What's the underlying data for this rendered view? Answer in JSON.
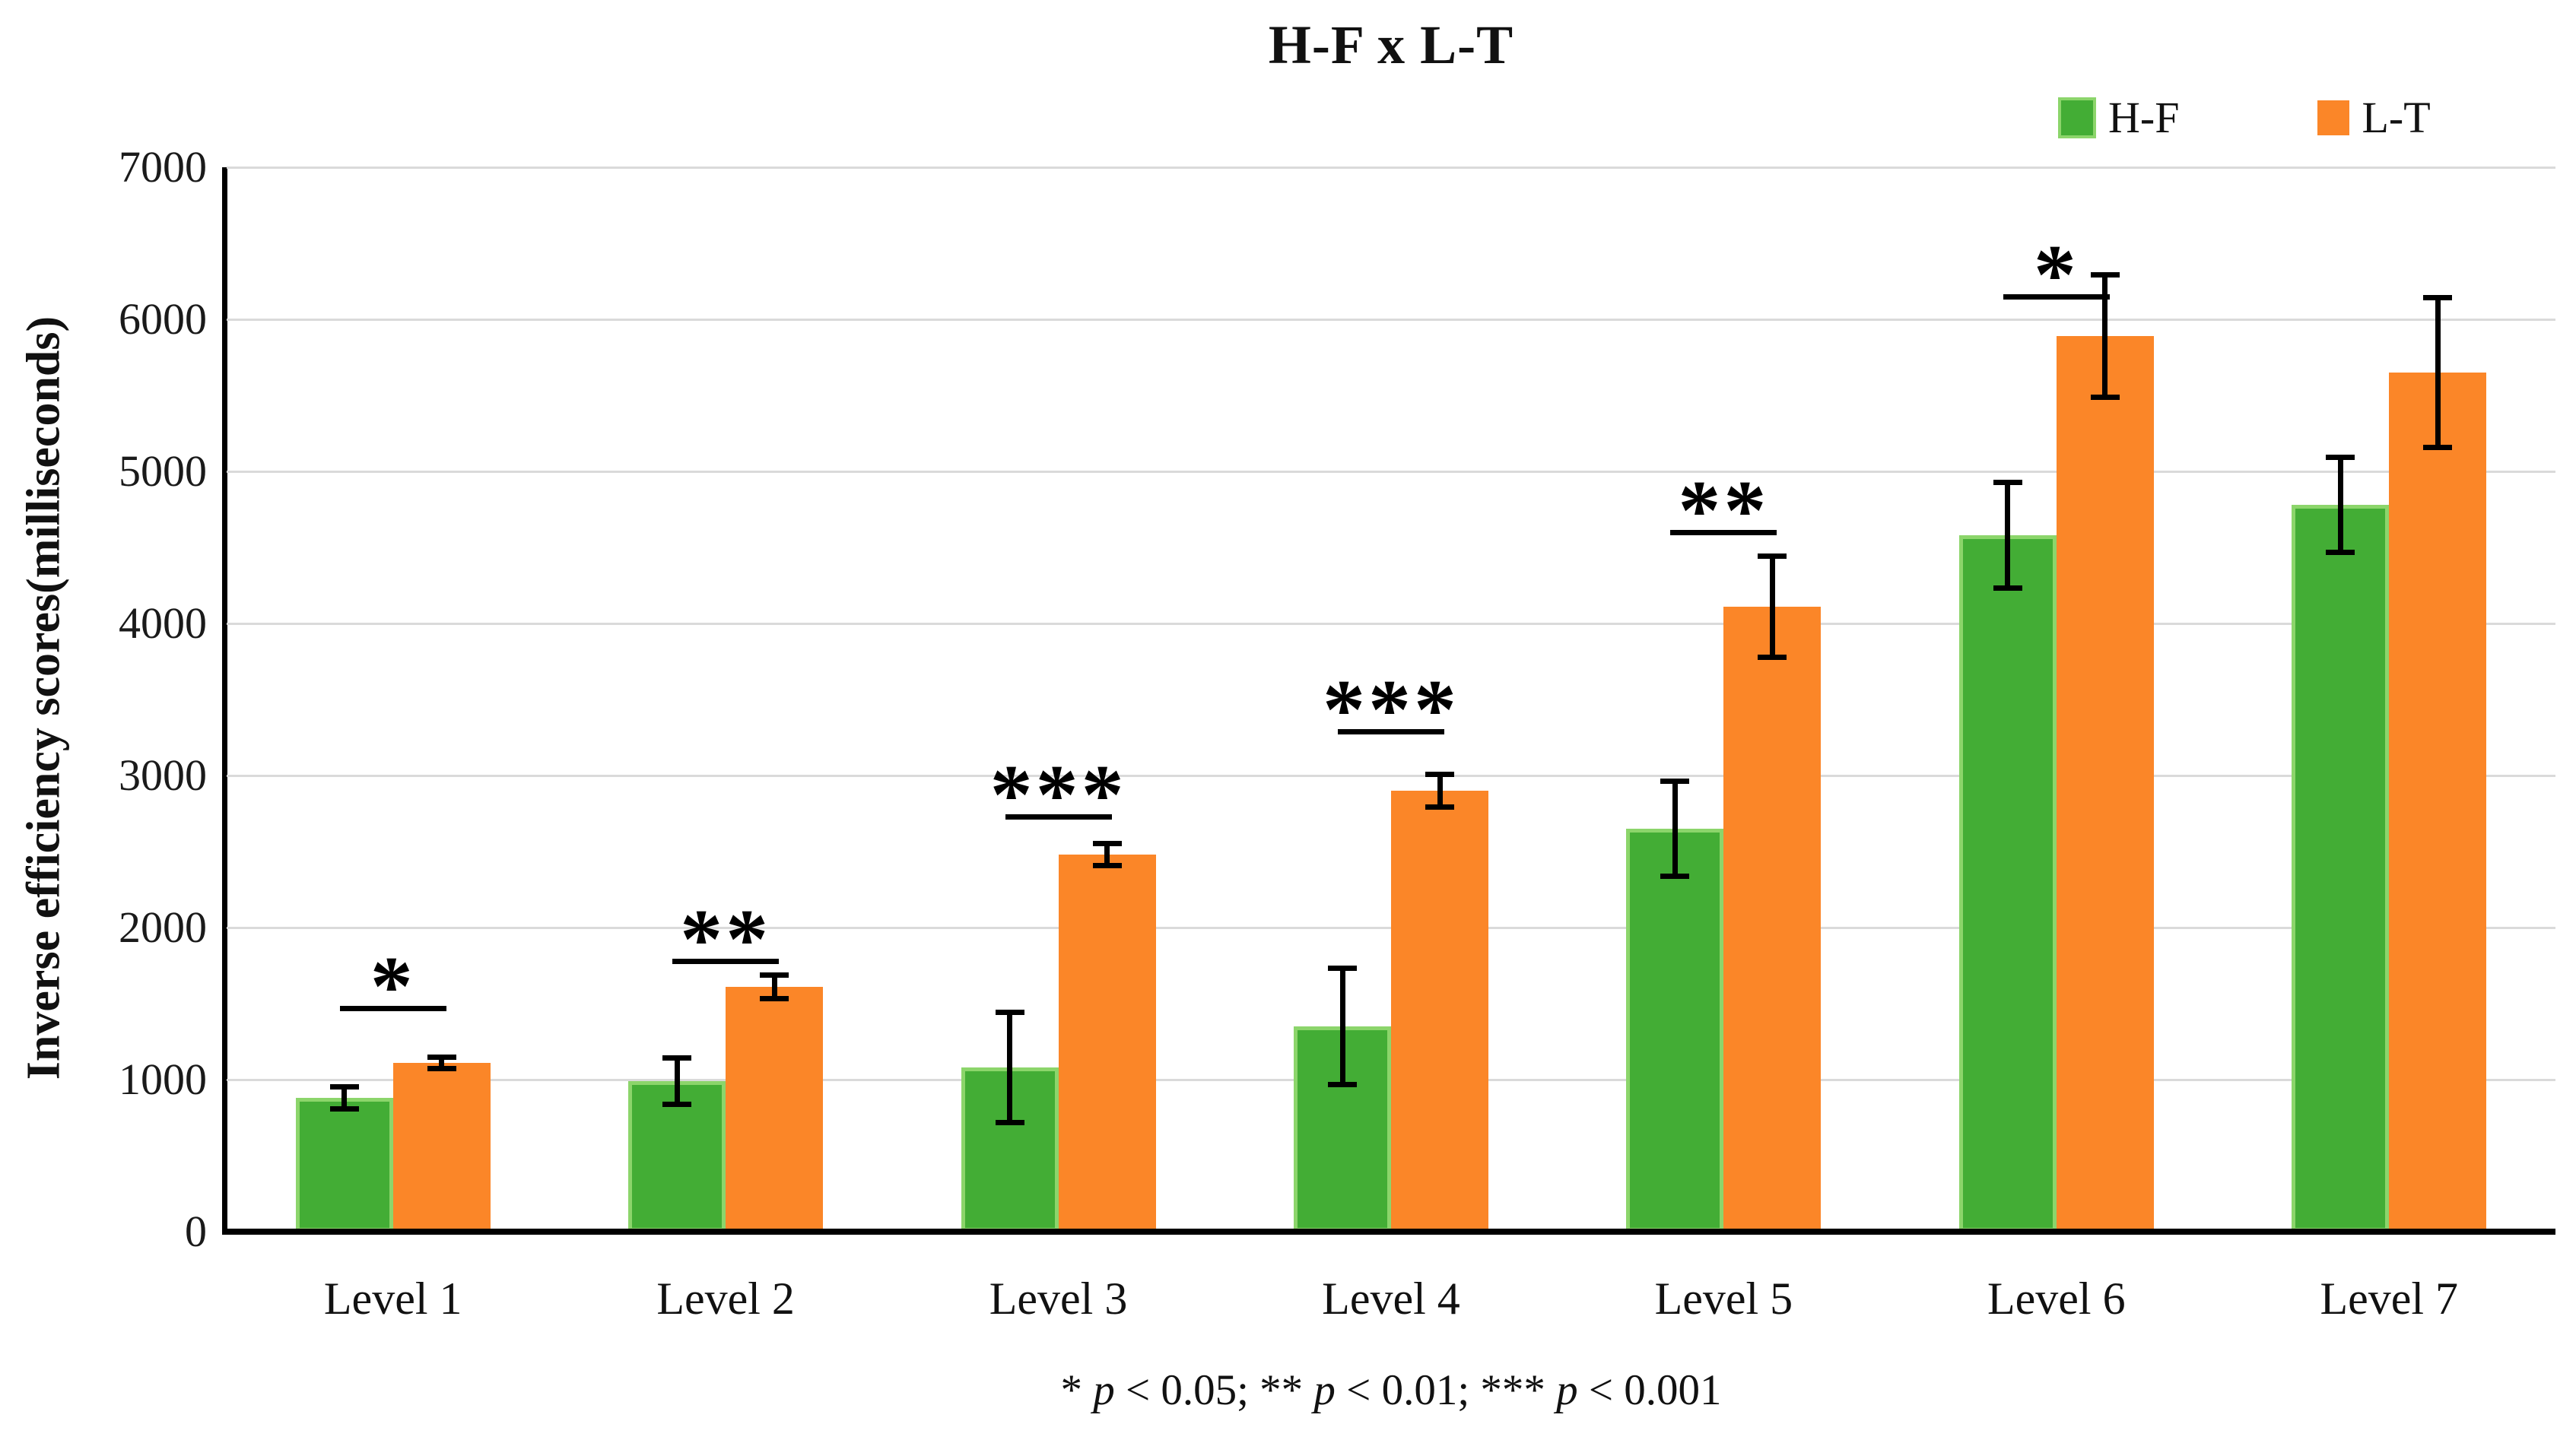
{
  "title": "H-F x L-T",
  "ytitle": "Inverse efficiency scores(milliseconds)",
  "footnote": {
    "parts": [
      "* ",
      "p",
      " < 0.05; ** ",
      "p",
      " < 0.01; *** ",
      "p",
      " < 0.001"
    ]
  },
  "colors": {
    "hf_fill": "#43AD35",
    "hf_border": "#8CD56B",
    "lt_fill": "#FB8628",
    "grid": "#DADADA",
    "axis": "#000000",
    "text": "#1A1A1A"
  },
  "chart_data": {
    "type": "bar",
    "title": "H-F x L-T",
    "xlabel": "",
    "ylabel": "Inverse efficiency scores(milliseconds)",
    "categories": [
      "Level 1",
      "Level 2",
      "Level 3",
      "Level 4",
      "Level 5",
      "Level 6",
      "Level 7"
    ],
    "yticks": [
      "0",
      "1000",
      "2000",
      "3000",
      "4000",
      "5000",
      "6000",
      "7000"
    ],
    "ylim": [
      0,
      7000
    ],
    "ytick_step": 1000,
    "grid": true,
    "legend_position": "top-right",
    "series": [
      {
        "name": "H-F",
        "values": [
          880,
          990,
          1080,
          1350,
          2650,
          4580,
          4780
        ],
        "errors": [
          90,
          170,
          380,
          400,
          330,
          365,
          330
        ]
      },
      {
        "name": "L-T",
        "values": [
          1110,
          1610,
          2480,
          2900,
          4110,
          5890,
          5650
        ],
        "errors": [
          55,
          95,
          90,
          125,
          350,
          420,
          510
        ]
      }
    ],
    "significance": {
      "labels": [
        "*",
        "**",
        "***",
        "***",
        "**",
        "*",
        null
      ],
      "line_y": [
        1470,
        1780,
        2730,
        3290,
        4600,
        6150,
        null
      ],
      "note": "* p < 0.05; ** p < 0.01; *** p < 0.001"
    }
  }
}
